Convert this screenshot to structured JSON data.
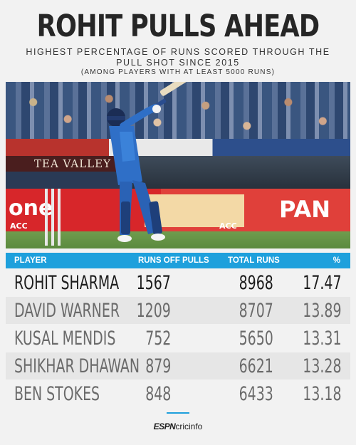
{
  "header": {
    "title": "ROHIT PULLS AHEAD",
    "subtitle": "HIGHEST PERCENTAGE OF RUNS SCORED THROUGH THE PULL SHOT SINCE 2015",
    "note": "(AMONG PLAYERS WITH AT LEAST 5000 RUNS)"
  },
  "photo": {
    "banner_text": "TEA VALLEY",
    "board_left": "one",
    "board_right": "PAN",
    "board_small_1": "ACC",
    "board_small_2": "ACC"
  },
  "table": {
    "columns": [
      "PLAYER",
      "RUNS OFF PULLS",
      "TOTAL RUNS",
      "%"
    ],
    "rows": [
      {
        "player": "ROHIT SHARMA",
        "pulls": "1567",
        "total": "8968",
        "pct": "17.47"
      },
      {
        "player": "DAVID WARNER",
        "pulls": "1209",
        "total": "8707",
        "pct": "13.89"
      },
      {
        "player": "KUSAL MENDIS",
        "pulls": "752",
        "total": "5650",
        "pct": "13.31"
      },
      {
        "player": "SHIKHAR DHAWAN",
        "pulls": "879",
        "total": "6621",
        "pct": "13.28"
      },
      {
        "player": "BEN STOKES",
        "pulls": "848",
        "total": "6433",
        "pct": "13.18"
      }
    ]
  },
  "footer": {
    "logo_espn": "ESPN",
    "logo_cric": "cricinfo"
  },
  "colors": {
    "accent": "#1ea0dc",
    "background": "#f2f2f2",
    "row_alt": "#e6e6e6"
  }
}
